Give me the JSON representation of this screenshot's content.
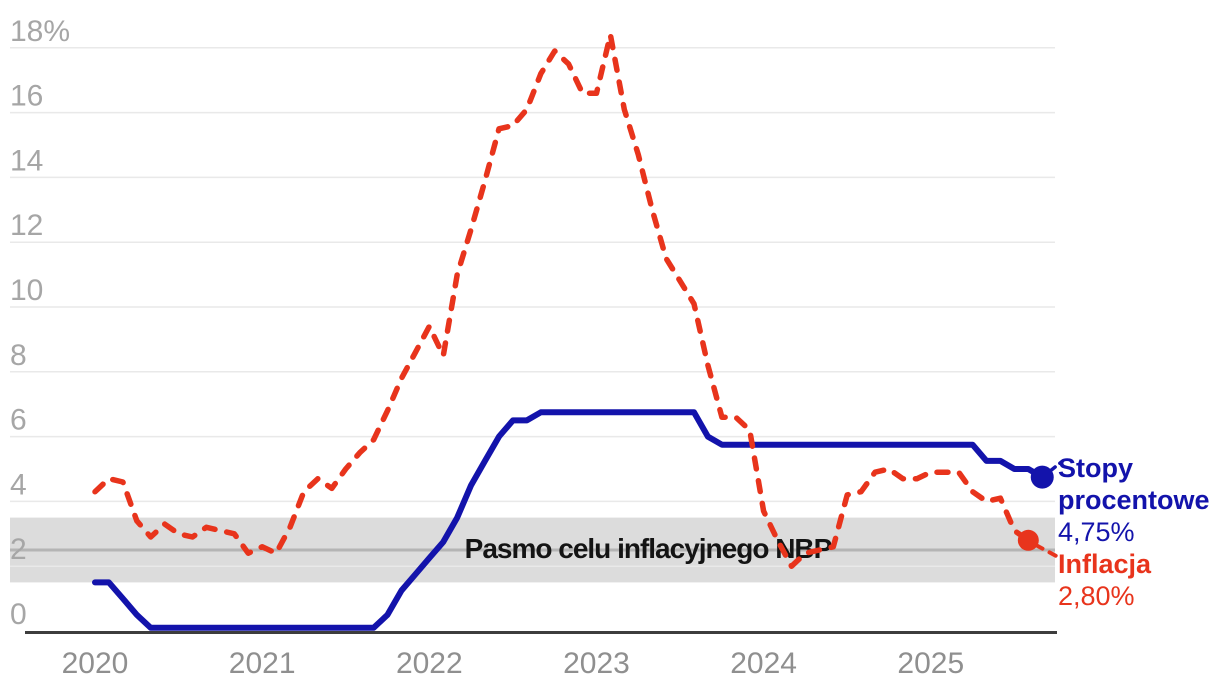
{
  "chart_data": {
    "type": "line",
    "x_start": "2020-01",
    "x_interval": "monthly",
    "x_ticks": [
      {
        "m": 0,
        "label": "2020"
      },
      {
        "m": 12,
        "label": "2021"
      },
      {
        "m": 24,
        "label": "2022"
      },
      {
        "m": 36,
        "label": "2023"
      },
      {
        "m": 48,
        "label": "2024"
      },
      {
        "m": 60,
        "label": "2025"
      }
    ],
    "y_ticks": [
      {
        "value": 0,
        "label": "0"
      },
      {
        "value": 2,
        "label": "2"
      },
      {
        "value": 4,
        "label": "4"
      },
      {
        "value": 6,
        "label": "6"
      },
      {
        "value": 8,
        "label": "8"
      },
      {
        "value": 10,
        "label": "10"
      },
      {
        "value": 12,
        "label": "12"
      },
      {
        "value": 14,
        "label": "14"
      },
      {
        "value": 16,
        "label": "16"
      },
      {
        "value": 18,
        "label": "18%"
      }
    ],
    "ylim": [
      0,
      18.6
    ],
    "grid": "horizontal",
    "target_band": {
      "label": "Pasmo celu inflacyjnego NBP",
      "from": 1.5,
      "to": 3.5,
      "center_line": 2.5,
      "fill": "#dcdcdc",
      "line_color": "#b4b4b4"
    },
    "series": [
      {
        "name": "Stopy procentowe",
        "end_label": "4,75%",
        "color": "#1313ab",
        "line_style": "solid",
        "values": [
          1.5,
          1.5,
          1.0,
          0.5,
          0.1,
          0.1,
          0.1,
          0.1,
          0.1,
          0.1,
          0.1,
          0.1,
          0.1,
          0.1,
          0.1,
          0.1,
          0.1,
          0.1,
          0.1,
          0.1,
          0.1,
          0.5,
          1.25,
          1.75,
          2.25,
          2.75,
          3.5,
          4.5,
          5.25,
          6.0,
          6.5,
          6.5,
          6.75,
          6.75,
          6.75,
          6.75,
          6.75,
          6.75,
          6.75,
          6.75,
          6.75,
          6.75,
          6.75,
          6.75,
          6.0,
          5.75,
          5.75,
          5.75,
          5.75,
          5.75,
          5.75,
          5.75,
          5.75,
          5.75,
          5.75,
          5.75,
          5.75,
          5.75,
          5.75,
          5.75,
          5.75,
          5.75,
          5.75,
          5.75,
          5.25,
          5.25,
          5.0,
          5.0,
          4.75
        ]
      },
      {
        "name": "Inflacja",
        "end_label": "2,80%",
        "color": "#e8341c",
        "line_style": "dashed",
        "values": [
          4.3,
          4.7,
          4.6,
          3.4,
          2.9,
          3.3,
          3.0,
          2.9,
          3.2,
          3.1,
          3.0,
          2.4,
          2.6,
          2.4,
          3.2,
          4.3,
          4.7,
          4.4,
          5.0,
          5.5,
          5.9,
          6.8,
          7.8,
          8.6,
          9.4,
          8.5,
          11.0,
          12.4,
          13.9,
          15.5,
          15.6,
          16.1,
          17.2,
          17.9,
          17.5,
          16.6,
          16.6,
          18.4,
          16.1,
          14.7,
          13.0,
          11.5,
          10.8,
          10.1,
          8.2,
          6.6,
          6.6,
          6.2,
          3.7,
          2.8,
          2.0,
          2.4,
          2.5,
          2.6,
          4.2,
          4.3,
          4.9,
          5.0,
          4.7,
          4.7,
          4.9,
          4.9,
          4.9,
          4.3,
          4.0,
          4.1,
          3.1,
          2.8
        ]
      }
    ],
    "legend_position": "right-end"
  }
}
